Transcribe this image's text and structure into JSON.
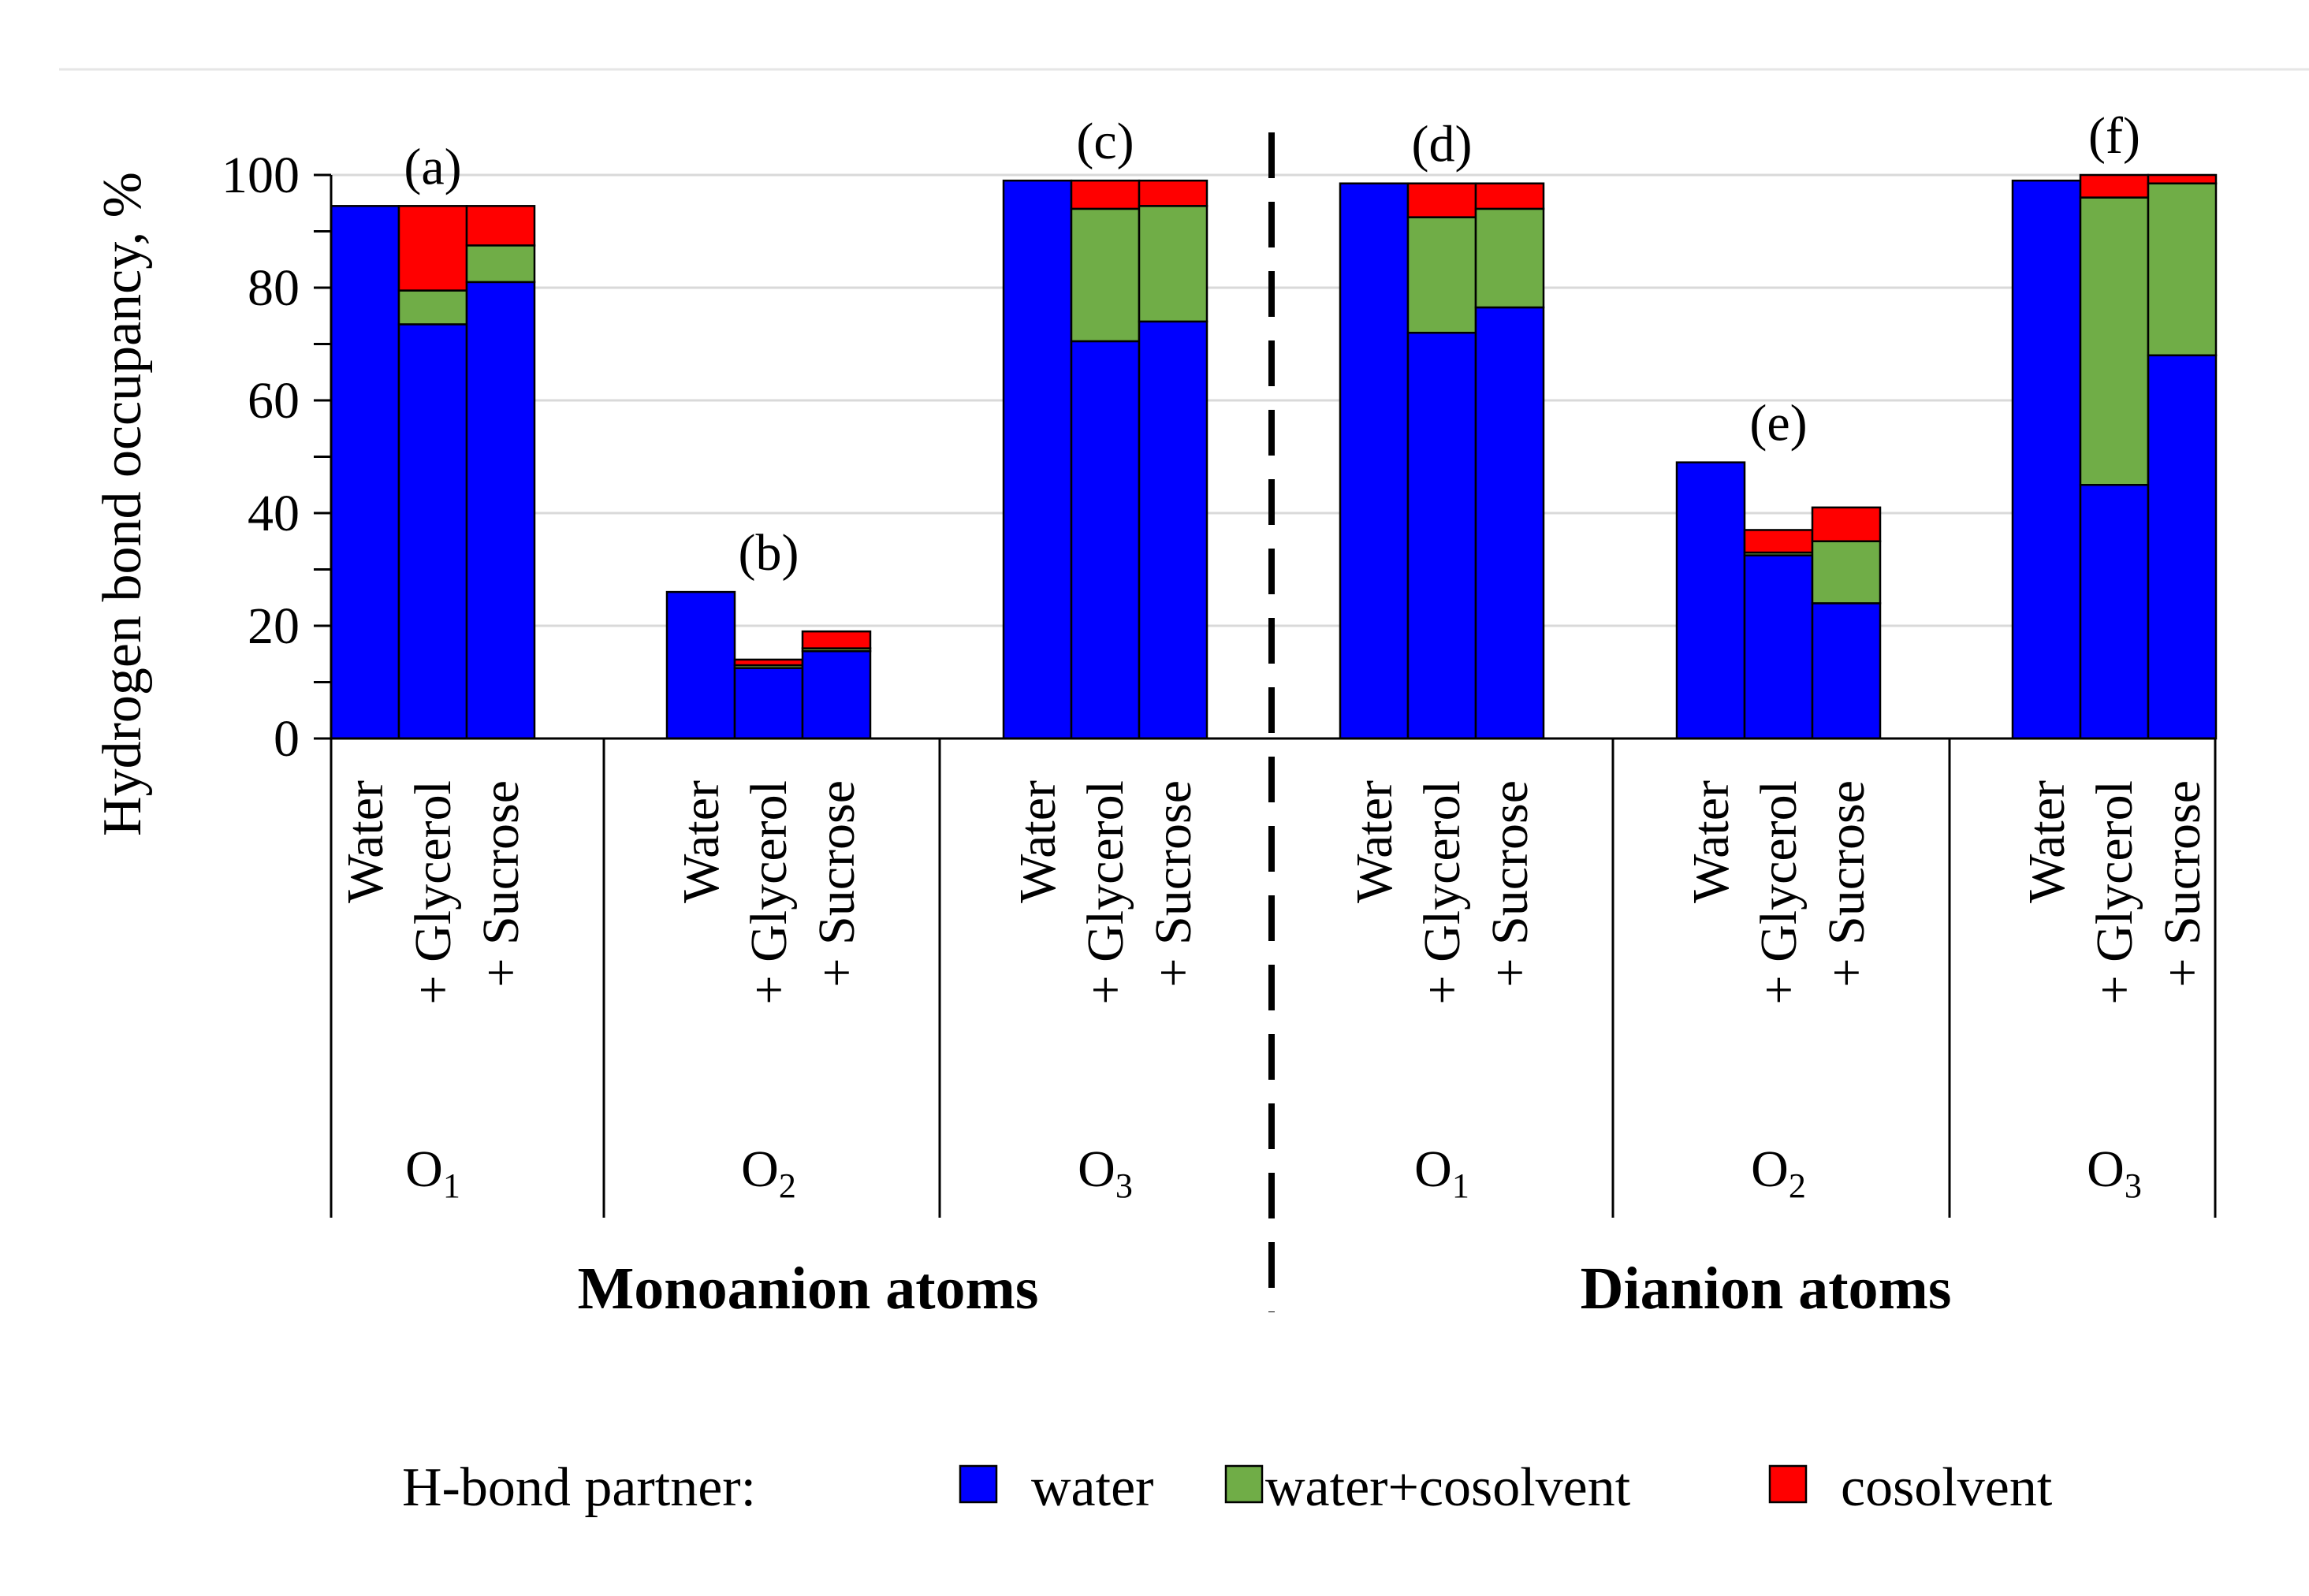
{
  "chart_data": {
    "type": "bar",
    "stacked": true,
    "ylabel": "Hydrogen bond occupancy, %",
    "ylim": [
      0,
      100
    ],
    "yticks": [
      "0",
      "20",
      "40",
      "60",
      "80",
      "100"
    ],
    "grid": true,
    "legend": {
      "title": "H-bond partner:",
      "placement": "bottom",
      "entries": [
        {
          "name": "water",
          "color": "#0000ff"
        },
        {
          "name": "water+cosolvent",
          "color": "#70ad47"
        },
        {
          "name": "cosolvent",
          "color": "#ff0000"
        }
      ]
    },
    "categories": [
      "Water",
      "+ Glycerol",
      "+ Sucrose"
    ],
    "groups": [
      {
        "name": "Monoanion atoms",
        "atoms": [
          {
            "atom": "O",
            "sub": "1",
            "panel": "(a)",
            "bars": [
              {
                "water": 94.5,
                "water_cosolvent": 0,
                "cosolvent": 0
              },
              {
                "water": 73.5,
                "water_cosolvent": 6,
                "cosolvent": 15
              },
              {
                "water": 81,
                "water_cosolvent": 6.5,
                "cosolvent": 7
              }
            ]
          },
          {
            "atom": "O",
            "sub": "2",
            "panel": "(b)",
            "bars": [
              {
                "water": 26,
                "water_cosolvent": 0,
                "cosolvent": 0
              },
              {
                "water": 12.5,
                "water_cosolvent": 0.5,
                "cosolvent": 1
              },
              {
                "water": 15.5,
                "water_cosolvent": 0.5,
                "cosolvent": 3
              }
            ]
          },
          {
            "atom": "O",
            "sub": "3",
            "panel": "(c)",
            "bars": [
              {
                "water": 99,
                "water_cosolvent": 0,
                "cosolvent": 0
              },
              {
                "water": 70.5,
                "water_cosolvent": 23.5,
                "cosolvent": 5
              },
              {
                "water": 74,
                "water_cosolvent": 20.5,
                "cosolvent": 4.5
              }
            ]
          }
        ]
      },
      {
        "name": "Dianion atoms",
        "atoms": [
          {
            "atom": "O",
            "sub": "1",
            "panel": "(d)",
            "bars": [
              {
                "water": 98.5,
                "water_cosolvent": 0,
                "cosolvent": 0
              },
              {
                "water": 72,
                "water_cosolvent": 20.5,
                "cosolvent": 6
              },
              {
                "water": 76.5,
                "water_cosolvent": 17.5,
                "cosolvent": 4.5
              }
            ]
          },
          {
            "atom": "O",
            "sub": "2",
            "panel": "(e)",
            "bars": [
              {
                "water": 49,
                "water_cosolvent": 0,
                "cosolvent": 0
              },
              {
                "water": 32.5,
                "water_cosolvent": 0.5,
                "cosolvent": 4
              },
              {
                "water": 24,
                "water_cosolvent": 11,
                "cosolvent": 6
              }
            ]
          },
          {
            "atom": "O",
            "sub": "3",
            "panel": "(f)",
            "bars": [
              {
                "water": 99,
                "water_cosolvent": 0,
                "cosolvent": 0
              },
              {
                "water": 45,
                "water_cosolvent": 51,
                "cosolvent": 4
              },
              {
                "water": 68,
                "water_cosolvent": 30.5,
                "cosolvent": 1.5
              }
            ]
          }
        ]
      }
    ]
  }
}
